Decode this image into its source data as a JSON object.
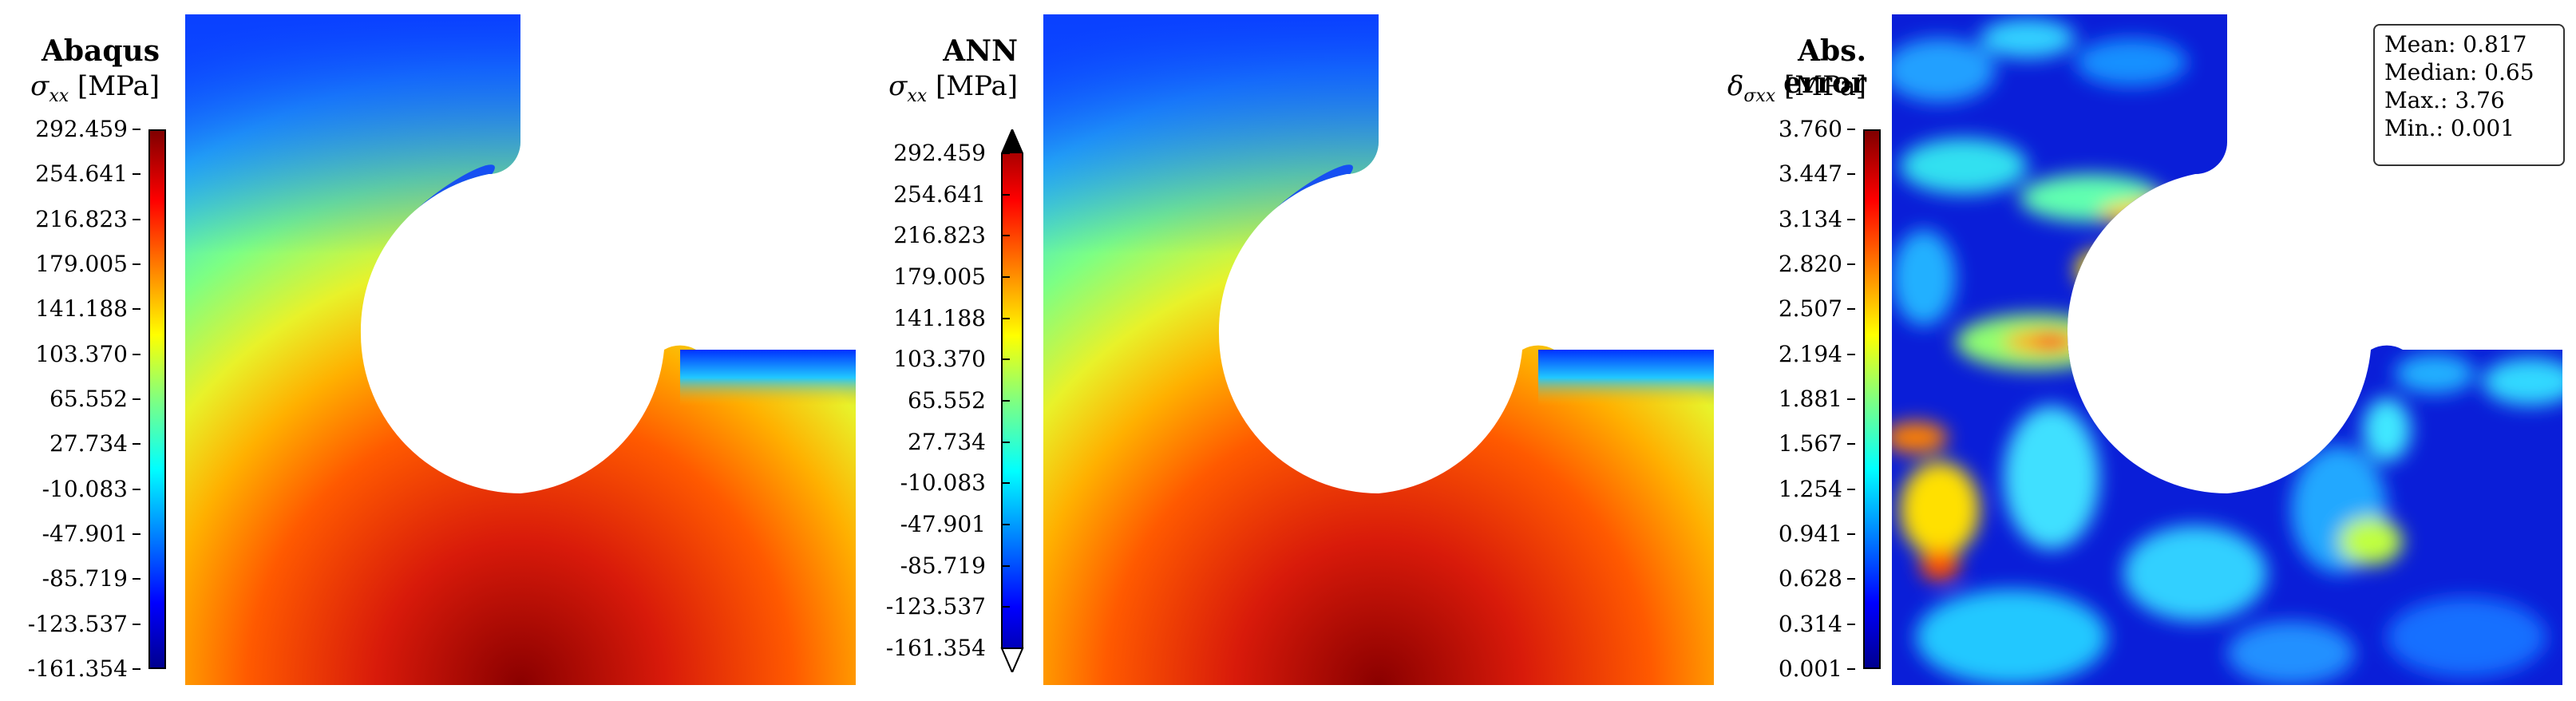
{
  "panels": [
    {
      "title": "Abaqus",
      "quantity_symbol": "σ",
      "quantity_subscript": "xx",
      "unit": "[MPa]",
      "ticks": [
        "292.459",
        "254.641",
        "216.823",
        "179.005",
        "141.188",
        "103.370",
        "65.552",
        "27.734",
        "-10.083",
        "-47.901",
        "-85.719",
        "-123.537",
        "-161.354"
      ]
    },
    {
      "title": "ANN",
      "quantity_symbol": "σ",
      "quantity_subscript": "xx",
      "unit": "[MPa]",
      "ticks": [
        "292.459",
        "254.641",
        "216.823",
        "179.005",
        "141.188",
        "103.370",
        "65.552",
        "27.734",
        "-10.083",
        "-47.901",
        "-85.719",
        "-123.537",
        "-161.354"
      ]
    },
    {
      "title": "Abs. error",
      "quantity_symbol": "δ",
      "quantity_subscript": "σxx",
      "unit": "[MPa]",
      "ticks": [
        "3.760",
        "3.447",
        "3.134",
        "2.820",
        "2.507",
        "2.194",
        "1.881",
        "1.567",
        "1.254",
        "0.941",
        "0.628",
        "0.314",
        "0.001"
      ]
    }
  ],
  "stats": {
    "mean": "Mean: 0.817",
    "median": "Median: 0.65",
    "max": "Max.: 3.76",
    "min": "Min.: 0.001"
  },
  "colormap": "jet"
}
